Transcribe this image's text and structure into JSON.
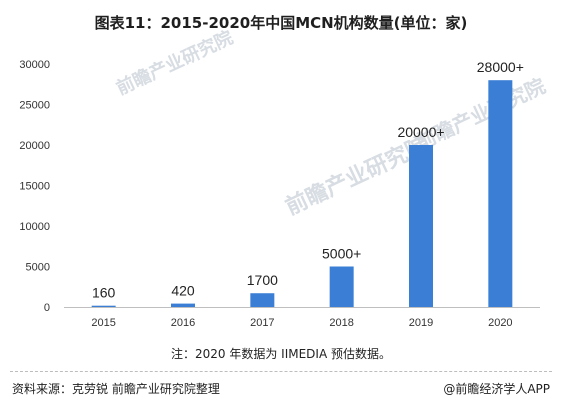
{
  "header": {
    "title": "图表11：2015-2020年中国MCN机构数量(单位：家)"
  },
  "watermark": {
    "text": "前瞻产业研究院"
  },
  "chart_data": {
    "type": "bar",
    "categories": [
      "2015",
      "2016",
      "2017",
      "2018",
      "2019",
      "2020"
    ],
    "values": [
      160,
      420,
      1700,
      5000,
      20000,
      28000
    ],
    "data_labels": [
      "160",
      "420",
      "1700",
      "5000+",
      "20000+",
      "28000+"
    ],
    "yticks": [
      0,
      5000,
      10000,
      15000,
      20000,
      25000,
      30000
    ],
    "ylim": [
      0,
      30000
    ],
    "grid": false,
    "bar_color": "#3a7fd5",
    "title": "",
    "xlabel": "",
    "ylabel": ""
  },
  "note": {
    "text": "注：2020 年数据为 IIMEDIA 预估数据。"
  },
  "footer": {
    "source": "资料来源：克劳锐 前瞻产业研究院整理",
    "credit": "@前瞻经济学人APP"
  }
}
